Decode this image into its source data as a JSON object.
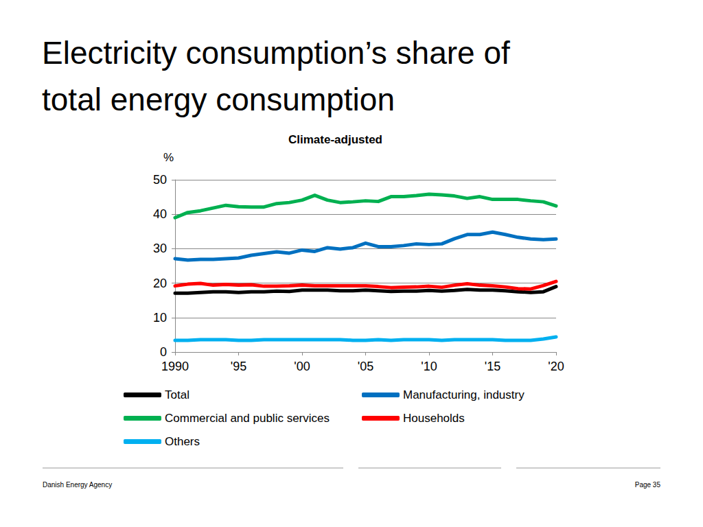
{
  "chart_data": {
    "type": "line",
    "title": "Electricity consumption’s share of total energy consumption",
    "subtitle": "Climate-adjusted",
    "y_label": "%",
    "footer_left": "Danish Energy Agency",
    "footer_right": "Page 35",
    "x": [
      1990,
      1991,
      1992,
      1993,
      1994,
      1995,
      1996,
      1997,
      1998,
      1999,
      2000,
      2001,
      2002,
      2003,
      2004,
      2005,
      2006,
      2007,
      2008,
      2009,
      2010,
      2011,
      2012,
      2013,
      2014,
      2015,
      2016,
      2017,
      2018,
      2019,
      2020
    ],
    "xlim": [
      1990,
      2020
    ],
    "xticks": [
      1990,
      {
        "value": 1995,
        "label": "'95"
      },
      {
        "value": 2000,
        "label": "'00"
      },
      {
        "value": 2005,
        "label": "'05"
      },
      {
        "value": 2010,
        "label": "'10"
      },
      {
        "value": 2015,
        "label": "'15"
      },
      {
        "value": 2020,
        "label": "'20"
      }
    ],
    "ylim": [
      0,
      50
    ],
    "yticks": [
      0,
      10,
      20,
      30,
      40,
      50
    ],
    "grid": true,
    "legend": "bottom",
    "series": [
      {
        "name": "Total",
        "color": "#000000",
        "values": [
          17.1,
          17.1,
          17.3,
          17.5,
          17.5,
          17.3,
          17.5,
          17.5,
          17.7,
          17.6,
          18.0,
          18.0,
          18.0,
          17.8,
          17.8,
          18.0,
          17.8,
          17.6,
          17.7,
          17.7,
          17.9,
          17.7,
          17.9,
          18.2,
          18.0,
          18.0,
          17.8,
          17.5,
          17.3,
          17.5,
          19.0
        ]
      },
      {
        "name": "Manufacturing, industry",
        "color": "#0070c0",
        "values": [
          27.1,
          26.7,
          26.9,
          26.9,
          27.1,
          27.3,
          28.1,
          28.6,
          29.1,
          28.7,
          29.6,
          29.2,
          30.3,
          29.9,
          30.3,
          31.6,
          30.6,
          30.6,
          30.9,
          31.4,
          31.2,
          31.4,
          32.9,
          34.1,
          34.1,
          34.8,
          34.1,
          33.3,
          32.8,
          32.6,
          32.8
        ]
      },
      {
        "name": "Commercial and public services",
        "color": "#00b050",
        "values": [
          39.0,
          40.5,
          41.0,
          41.8,
          42.6,
          42.2,
          42.1,
          42.1,
          43.1,
          43.4,
          44.1,
          45.5,
          44.1,
          43.4,
          43.6,
          43.9,
          43.7,
          45.1,
          45.1,
          45.4,
          45.8,
          45.6,
          45.3,
          44.6,
          45.1,
          44.3,
          44.3,
          44.3,
          43.9,
          43.6,
          42.4
        ]
      },
      {
        "name": "Households",
        "color": "#ff0000",
        "values": [
          19.2,
          19.7,
          19.9,
          19.4,
          19.6,
          19.4,
          19.5,
          19.1,
          19.1,
          19.2,
          19.4,
          19.2,
          19.2,
          19.2,
          19.2,
          19.2,
          19.0,
          18.7,
          18.8,
          18.9,
          19.1,
          18.8,
          19.4,
          19.8,
          19.4,
          19.2,
          18.9,
          18.4,
          18.3,
          19.3,
          20.5
        ]
      },
      {
        "name": "Others",
        "color": "#00b0f0",
        "values": [
          3.4,
          3.4,
          3.6,
          3.6,
          3.6,
          3.4,
          3.4,
          3.6,
          3.6,
          3.6,
          3.6,
          3.6,
          3.6,
          3.6,
          3.4,
          3.4,
          3.6,
          3.4,
          3.6,
          3.6,
          3.6,
          3.4,
          3.6,
          3.6,
          3.6,
          3.6,
          3.4,
          3.4,
          3.4,
          3.8,
          4.4
        ]
      }
    ]
  }
}
